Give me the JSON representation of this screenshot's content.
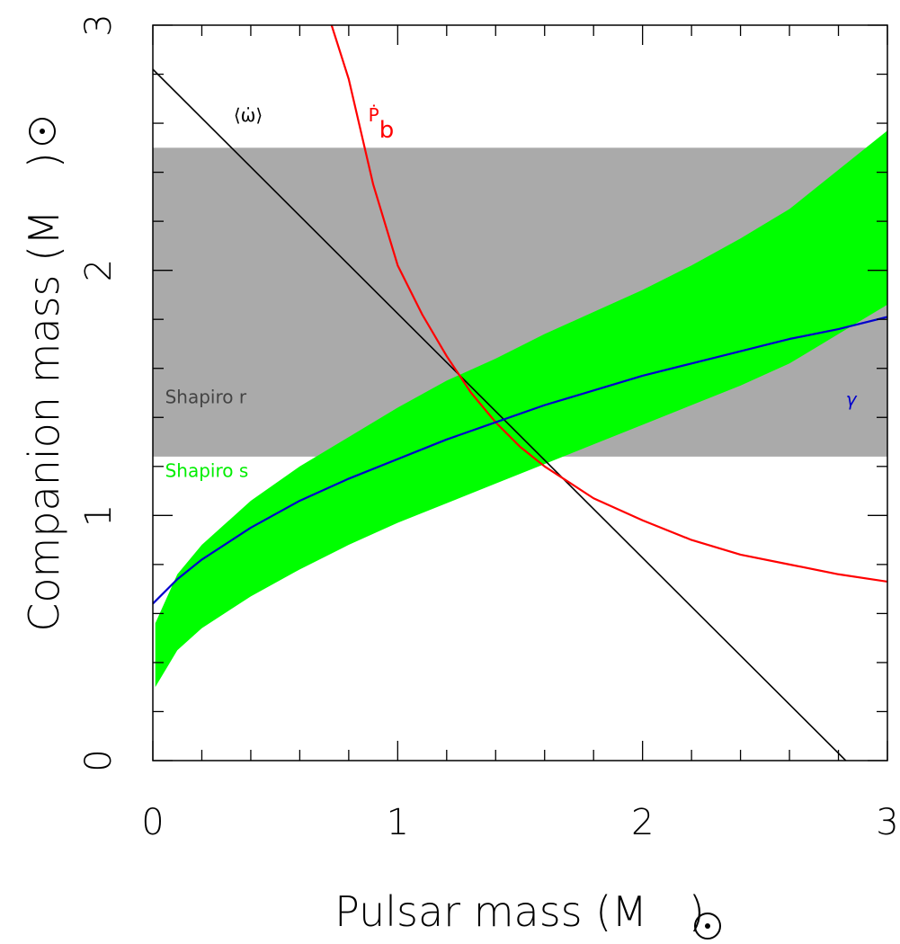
{
  "chart_data": {
    "type": "line",
    "xlabel": "Pulsar mass (M",
    "ylabel": "Companion mass (M",
    "label_close": ")",
    "sun_symbol": "sun-symbol",
    "xlim": [
      0,
      3
    ],
    "ylim": [
      0,
      3
    ],
    "x_ticks": [
      0,
      1,
      2,
      3
    ],
    "y_ticks": [
      0,
      1,
      2,
      3
    ],
    "x_tick_labels": [
      "0",
      "1",
      "2",
      "3"
    ],
    "y_tick_labels": [
      "0",
      "1",
      "2",
      "3"
    ],
    "minor_tick_step": 0.2,
    "grid": false,
    "series": [
      {
        "name": "⟨ω̇⟩",
        "color": "#000000",
        "points": [
          [
            0,
            2.82
          ],
          [
            2.83,
            0
          ]
        ]
      },
      {
        "name": "Ṗb",
        "color": "#ff0000",
        "points": [
          [
            0.73,
            3.0
          ],
          [
            0.8,
            2.78
          ],
          [
            0.9,
            2.35
          ],
          [
            1.0,
            2.02
          ],
          [
            1.1,
            1.82
          ],
          [
            1.2,
            1.65
          ],
          [
            1.3,
            1.5
          ],
          [
            1.4,
            1.38
          ],
          [
            1.5,
            1.28
          ],
          [
            1.6,
            1.2
          ],
          [
            1.8,
            1.07
          ],
          [
            2.0,
            0.98
          ],
          [
            2.2,
            0.9
          ],
          [
            2.4,
            0.84
          ],
          [
            2.6,
            0.8
          ],
          [
            2.8,
            0.76
          ],
          [
            3.0,
            0.73
          ]
        ]
      },
      {
        "name": "γ",
        "color": "#0000cc",
        "points": [
          [
            0.0,
            0.64
          ],
          [
            0.1,
            0.74
          ],
          [
            0.2,
            0.82
          ],
          [
            0.4,
            0.95
          ],
          [
            0.6,
            1.06
          ],
          [
            0.8,
            1.15
          ],
          [
            1.0,
            1.23
          ],
          [
            1.2,
            1.31
          ],
          [
            1.4,
            1.38
          ],
          [
            1.6,
            1.45
          ],
          [
            1.8,
            1.51
          ],
          [
            2.0,
            1.57
          ],
          [
            2.2,
            1.62
          ],
          [
            2.4,
            1.67
          ],
          [
            2.6,
            1.72
          ],
          [
            2.8,
            1.76
          ],
          [
            3.0,
            1.81
          ]
        ]
      }
    ],
    "bands": [
      {
        "name": "Shapiro r",
        "type": "horizontal",
        "color": "#aaaaaa",
        "text_color": "#444444",
        "y_range": [
          1.24,
          2.5
        ]
      },
      {
        "name": "Shapiro s",
        "type": "region",
        "color": "#00ff00",
        "text_color": "#00ee00",
        "x": [
          0.01,
          0.1,
          0.2,
          0.4,
          0.6,
          0.8,
          1.0,
          1.2,
          1.4,
          1.6,
          1.8,
          2.0,
          2.2,
          2.4,
          2.6,
          2.8,
          3.0
        ],
        "lower": [
          0.3,
          0.45,
          0.54,
          0.67,
          0.78,
          0.88,
          0.97,
          1.05,
          1.13,
          1.21,
          1.29,
          1.37,
          1.45,
          1.53,
          1.62,
          1.74,
          1.86
        ],
        "upper": [
          0.56,
          0.76,
          0.88,
          1.06,
          1.2,
          1.32,
          1.44,
          1.55,
          1.64,
          1.74,
          1.83,
          1.92,
          2.02,
          2.13,
          2.25,
          2.41,
          2.57
        ]
      }
    ],
    "annotations": [
      {
        "text": "⟨ω̇⟩",
        "x": 0.33,
        "y": 2.63,
        "color": "#000000"
      },
      {
        "text": "Ṗ",
        "sub": "b",
        "x": 0.88,
        "y": 2.63,
        "color": "#ff0000"
      },
      {
        "text": "γ",
        "x": 2.83,
        "y": 1.47,
        "color": "#0000cc"
      },
      {
        "text": "Shapiro r",
        "x": 0.05,
        "y": 1.48,
        "color": "#444444"
      },
      {
        "text": "Shapiro s",
        "x": 0.05,
        "y": 1.18,
        "color": "#00ee00"
      }
    ]
  }
}
